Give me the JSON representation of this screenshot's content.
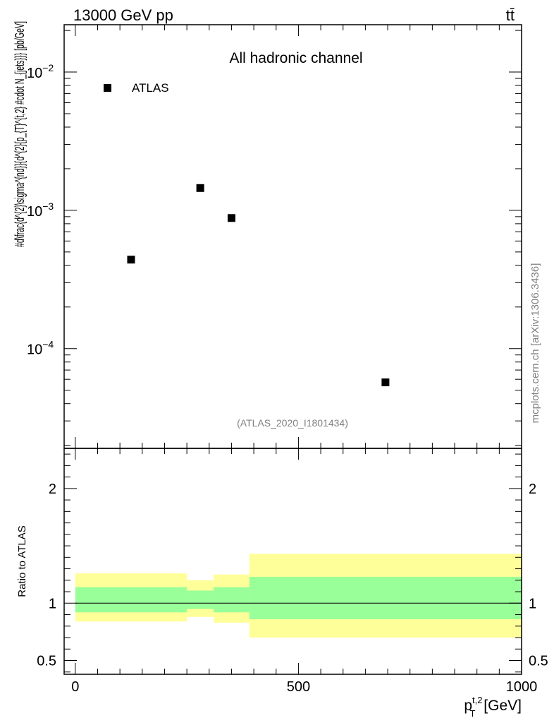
{
  "header": {
    "energy_label": "13000 GeV pp",
    "process_label": "tt̄"
  },
  "watermark": "mcplots.cern.ch [arXiv:1306.3436]",
  "chart_data": [
    {
      "type": "scatter",
      "panel": "main",
      "title": "All hadronic channel",
      "analysis_label": "(ATLAS_2020_I1801434)",
      "ylabel": "#d\\frac{d^{2}\\sigma^{nd}}{d^{2}{p_{T}^{t,2} #cdot N_{jets}}} [pb/GeV]",
      "y_scale": "log",
      "ylim": [
        1.9e-05,
        0.022
      ],
      "xlim": [
        -25,
        1000
      ],
      "y_tick_labels": [
        {
          "value": 0.01,
          "base": "10",
          "exp": "−2"
        },
        {
          "value": 0.001,
          "base": "10",
          "exp": "−3"
        },
        {
          "value": 0.0001,
          "base": "10",
          "exp": "−4"
        }
      ],
      "legend": {
        "placement": "top-left",
        "entries": [
          "ATLAS"
        ]
      },
      "series": [
        {
          "name": "ATLAS",
          "marker": "square",
          "color": "#000000",
          "x": [
            125,
            280,
            350,
            695
          ],
          "y": [
            0.00044,
            0.00145,
            0.00088,
            5.7e-05
          ]
        }
      ]
    },
    {
      "type": "area",
      "panel": "ratio",
      "ylabel": "Ratio to ATLAS",
      "ylim": [
        0.38,
        2.35
      ],
      "xlim": [
        -25,
        1000
      ],
      "x_ticks": [
        0,
        500,
        1000
      ],
      "x_tick_labels": [
        "0",
        "500",
        "1000"
      ],
      "y_ticks": [
        0.5,
        1,
        2
      ],
      "y_tick_labels": [
        "0.5",
        "1",
        "2"
      ],
      "xlabel": {
        "base": "p",
        "sub": "T",
        "sup": "t,2",
        "unit": " [GeV]"
      },
      "reference_line": 1.0,
      "bins": [
        {
          "x0": 0,
          "x1": 250,
          "inner": [
            0.92,
            1.14
          ],
          "outer": [
            0.84,
            1.26
          ]
        },
        {
          "x0": 250,
          "x1": 310,
          "inner": [
            0.95,
            1.11
          ],
          "outer": [
            0.88,
            1.2
          ]
        },
        {
          "x0": 310,
          "x1": 390,
          "inner": [
            0.92,
            1.14
          ],
          "outer": [
            0.83,
            1.25
          ]
        },
        {
          "x0": 390,
          "x1": 1000,
          "inner": [
            0.86,
            1.23
          ],
          "outer": [
            0.7,
            1.43
          ]
        }
      ],
      "colors": {
        "inner_band": "#99ff99",
        "outer_band": "#ffff99"
      }
    }
  ]
}
